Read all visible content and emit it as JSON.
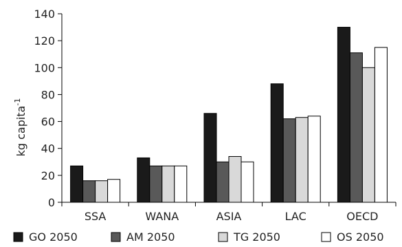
{
  "chart_data": {
    "type": "bar",
    "categories": [
      "SSA",
      "WANA",
      "ASIA",
      "LAC",
      "OECD"
    ],
    "series": [
      {
        "name": "GO 2050",
        "color": "#1a1a1a",
        "values": [
          27,
          33,
          66,
          88,
          130
        ]
      },
      {
        "name": "AM 2050",
        "color": "#595959",
        "values": [
          16,
          27,
          30,
          62,
          111
        ]
      },
      {
        "name": "TG 2050",
        "color": "#d9d9d9",
        "values": [
          16,
          27,
          34,
          63,
          100
        ]
      },
      {
        "name": "OS 2050",
        "color": "#ffffff",
        "values": [
          17,
          27,
          30,
          64,
          115
        ]
      }
    ],
    "ylabel": "kg capita",
    "ylabel_superscript": "-1",
    "ylim": [
      0,
      140
    ],
    "yticks": [
      "0",
      "20",
      "40",
      "60",
      "80",
      "100",
      "120",
      "140"
    ],
    "grid": false,
    "legend_position": "bottom"
  }
}
